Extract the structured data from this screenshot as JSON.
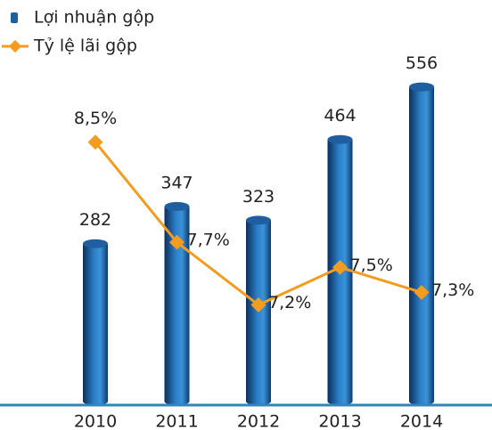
{
  "chart_data": {
    "type": "bar_line",
    "categories": [
      "2010",
      "2011",
      "2012",
      "2013",
      "2014"
    ],
    "series": [
      {
        "name": "Lợi nhuận gộp",
        "type": "bar",
        "color": "#1f5fa0",
        "values": [
          282,
          347,
          323,
          464,
          556
        ]
      },
      {
        "name": "Tỷ lệ lãi gộp",
        "type": "line",
        "axis": "y2",
        "color": "#f39c1f",
        "values": [
          8.5,
          7.7,
          7.2,
          7.5,
          7.3
        ],
        "value_labels": [
          "8,5%",
          "7,7%",
          "7,2%",
          "7,5%",
          "7,3%"
        ]
      }
    ],
    "ylim": [
      0,
      700
    ],
    "y2lim": [
      6.4,
      9.6
    ],
    "legend": "top-left"
  }
}
